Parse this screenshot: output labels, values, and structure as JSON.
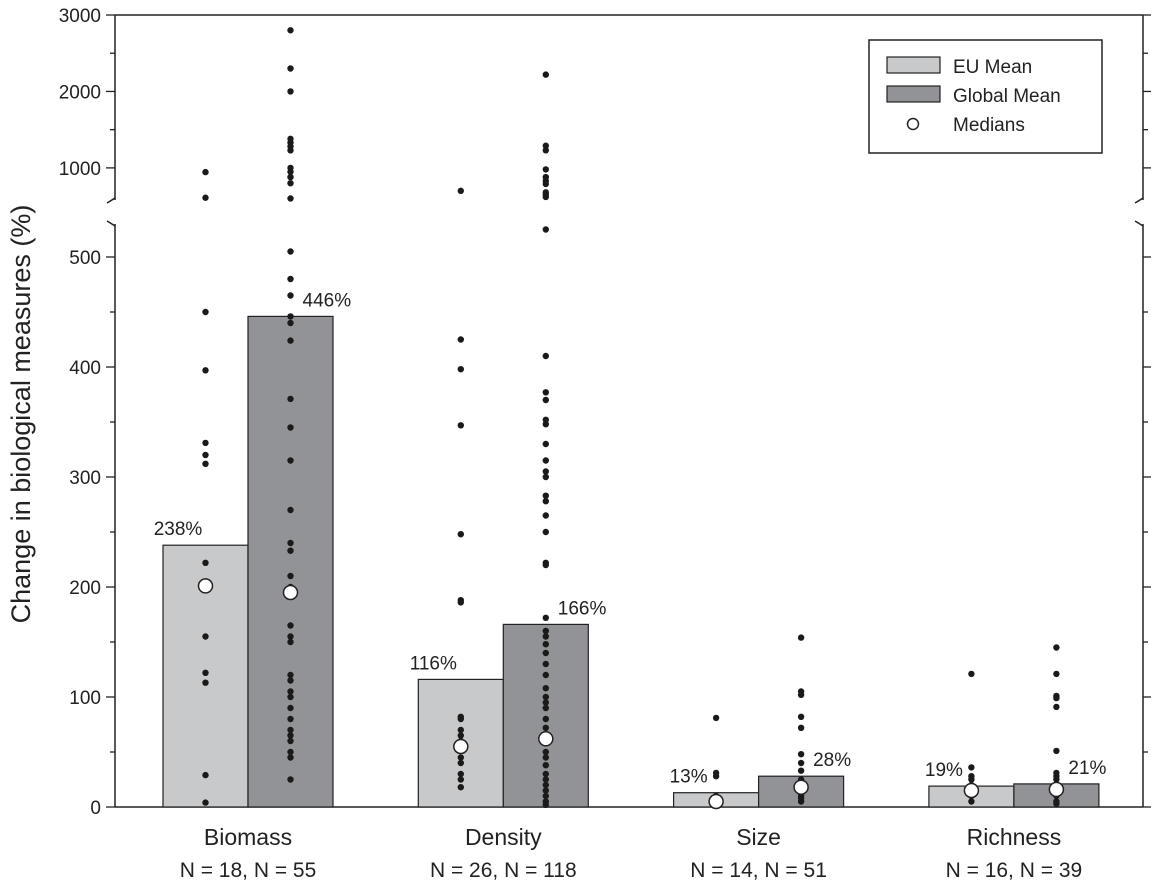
{
  "chart_data": {
    "type": "bar",
    "title": "",
    "xlabel": "",
    "ylabel": "Change in biological measures (%)",
    "y_axis_broken": true,
    "ylim_lower": [
      0,
      530
    ],
    "ylim_upper": [
      580,
      3000
    ],
    "yticks_lower": [
      0,
      100,
      200,
      300,
      400,
      500
    ],
    "yticks_upper": [
      1000,
      2000,
      3000
    ],
    "grid": false,
    "legend_position": "top-right",
    "legend": [
      {
        "label": "EU Mean",
        "kind": "bar",
        "color": "#c8c9cb"
      },
      {
        "label": "Global Mean",
        "kind": "bar",
        "color": "#929397"
      },
      {
        "label": "Medians",
        "kind": "open-circle"
      }
    ],
    "categories": [
      {
        "label": "Biomass",
        "n_label": "N = 18, N = 55"
      },
      {
        "label": "Density",
        "n_label": "N = 26, N = 118"
      },
      {
        "label": "Size",
        "n_label": "N = 14, N = 51"
      },
      {
        "label": "Richness",
        "n_label": "N = 16, N = 39"
      }
    ],
    "series": [
      {
        "name": "EU Mean",
        "color": "#c8c9cb",
        "values": [
          238,
          116,
          13,
          19
        ],
        "value_labels": [
          "238%",
          "116%",
          "13%",
          "19%"
        ],
        "medians": [
          201,
          55,
          5,
          15
        ],
        "points": [
          [
            945,
            610,
            450,
            397,
            331,
            320,
            312,
            222,
            201,
            155,
            122,
            113,
            29,
            4
          ],
          [
            700,
            425,
            398,
            347,
            248,
            188,
            186,
            82,
            80,
            70,
            65,
            60,
            55,
            45,
            40,
            30,
            25,
            18
          ],
          [
            81,
            31,
            28,
            10,
            5,
            3
          ],
          [
            121,
            36,
            28,
            25,
            20,
            15,
            10,
            5
          ]
        ]
      },
      {
        "name": "Global Mean",
        "color": "#929397",
        "values": [
          446,
          166,
          28,
          21
        ],
        "value_labels": [
          "446%",
          "166%",
          "28%",
          "21%"
        ],
        "medians": [
          195,
          62,
          18,
          16
        ],
        "points": [
          [
            2800,
            2300,
            2000,
            1380,
            1330,
            1280,
            1230,
            1000,
            950,
            880,
            800,
            600,
            505,
            480,
            465,
            446,
            440,
            424,
            371,
            345,
            315,
            270,
            240,
            233,
            210,
            200,
            195,
            165,
            155,
            150,
            120,
            115,
            105,
            100,
            90,
            80,
            70,
            65,
            60,
            50,
            45,
            25
          ],
          [
            2220,
            1290,
            1230,
            980,
            880,
            830,
            790,
            680,
            650,
            620,
            525,
            410,
            377,
            370,
            352,
            348,
            330,
            315,
            305,
            300,
            283,
            278,
            265,
            250,
            222,
            220,
            172,
            160,
            155,
            148,
            140,
            130,
            120,
            108,
            100,
            95,
            90,
            80,
            72,
            65,
            58,
            50,
            45,
            38,
            30,
            25,
            20,
            15,
            10,
            5,
            2
          ],
          [
            154,
            105,
            102,
            82,
            72,
            48,
            40,
            33,
            25,
            20,
            15,
            10,
            8,
            5
          ],
          [
            145,
            121,
            101,
            99,
            91,
            51,
            31,
            28,
            25,
            20,
            15,
            10,
            5,
            3
          ]
        ]
      }
    ]
  }
}
